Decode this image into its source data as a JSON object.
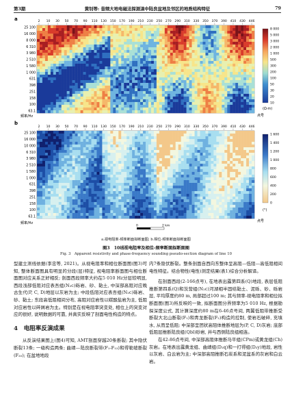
{
  "header": {
    "issue": "第3期",
    "title": "黄钊等: 音频大地电磁法探测滇中陆良盆地及邻区的地质结构特征",
    "page": "79"
  },
  "figure": {
    "panel_a_label": "a",
    "panel_b_label": "b",
    "top_ticks": [
      "2",
      "10",
      "30",
      "50",
      "70",
      "90",
      "110",
      "130",
      "150",
      "170",
      "190",
      "210",
      "230",
      "250",
      "270",
      "290",
      "310",
      "330",
      "350",
      "370",
      "390",
      "410",
      "430",
      "446"
    ],
    "y_ticks": [
      "25 100",
      "16 000",
      "8 000",
      "6 310",
      "3 980",
      "2 510",
      "1 580",
      "1 000",
      "631",
      "398",
      "251",
      "158",
      "100",
      "63.1"
    ],
    "y_ticks_b": [
      "25 100",
      "16 000",
      "10 000",
      "6 310",
      "3 980",
      "2 510",
      "1 580",
      "1 000",
      "631",
      "398",
      "251",
      "158",
      "100",
      "63.1"
    ],
    "ylabel": "频率/Hz",
    "unit_a": "(Ω·m)",
    "unit_b": "(°)",
    "point_label_a": "点号",
    "point_label_b": "点号",
    "scale_start": "0",
    "scale_end": "2 km",
    "legend_a": [
      "8 000",
      "5 000",
      "3 000",
      "2 000",
      "1 000",
      "500",
      "300",
      "200",
      "100",
      "50",
      "30",
      "20",
      "10"
    ],
    "legend_b": [
      "1 600",
      "1 400",
      "1 200",
      "1 000",
      "800",
      "600",
      "400",
      "200",
      "0"
    ]
  },
  "caption": {
    "sub": "a.视电阻率-频率断面拟断面图; b.相位-频率断面拟断面图",
    "zh": "图3　10线视电阻率及相位-频率断面拟断面图",
    "en": "Fig. 3　Apparent resistivity and phase-frequency sounding pseudo-section diagram of line 10"
  },
  "left_col": {
    "p1": "型建立测线依据(李忠等, 2021)。从视电阻率和相位断面图(图3)可知, 整体断面图具有明显的分段(层)特征, 视电阻率断面图与相位断面图对应关系正好相反; 剖面西段频率大约在5 010 Hz分层较明显, 西段浅部低阻对应表吾组(N₂c)砾岩、砂、黏土, 中深部高阻对应晚古生代(P, C, D)地层以灰岩为主; 中段低阻对应表吾组(N₂c)砾岩、砂、黏土; 东段高低阻相间分布, 高阻对应岩性以碳酸盐岩为主, 低阻对应岩性以碎屑岩为主。特别是在视电阻率突变处, 相位上的突变对应的很好, 说明数据的可靠, 并真实反映了剖面电性构造的特点。",
    "section": "4　电阻率反演成果",
    "p2": "从反演结果图上(图4)可知, AMT剖面穿越20条断裂; 其中隐伏断裂13条; 一级构造两条; 曲靖—陆良断裂带(F₁-F₁₃)和得勒坡断裂(F₂₀); 在盆地地段"
  },
  "right_col": {
    "p1": "内7条隐伏断裂。整条剖面自西向东整体呈高阻—低阻—高低阻相间电性特征。结合物性(电性)测定结果(表1)综合分析解译。",
    "p2": "在剖面西段(2-166点号), 在地表出露第四系(Q)地段, 表层低阻推断第四系(Q)和茨营组(N₂c)河湖相半固结黏土、泥砾、砂、砾岩层, 平均厚度约80 m, 局部超过100 m; 其与频率-视电阻率和相位拟断面图(图3)所反映的一致, 拟断面图分界频率为5 010 Hz, 根据勘探深度公式, 其计算深度约80 m在6-46点号间, 两翼低阻带推断受断裂大北山断裂(F₁)和青龙断裂(F₂)构造的控制, 使岩石破碎, 充填水, 从而呈低阻; 中深部呈团状高阻体推断地层为(P, C, D)灰岩; 底部低阻层推断陆良组(Qbl)砂岩, 并与西侧陆良组相连。",
    "p3": "在42-86点号间, 中深部高阻体推断马平组(CPm)或黄龙组(Ch)灰岩。在地表出露黄龙组、曲靖组(D₂q)和一打得组(D₃y)地段, 岩性以灰岩、白云岩为主; 中深部高阻推断石炭系和泥盆系的灰岩和白云岩。"
  }
}
